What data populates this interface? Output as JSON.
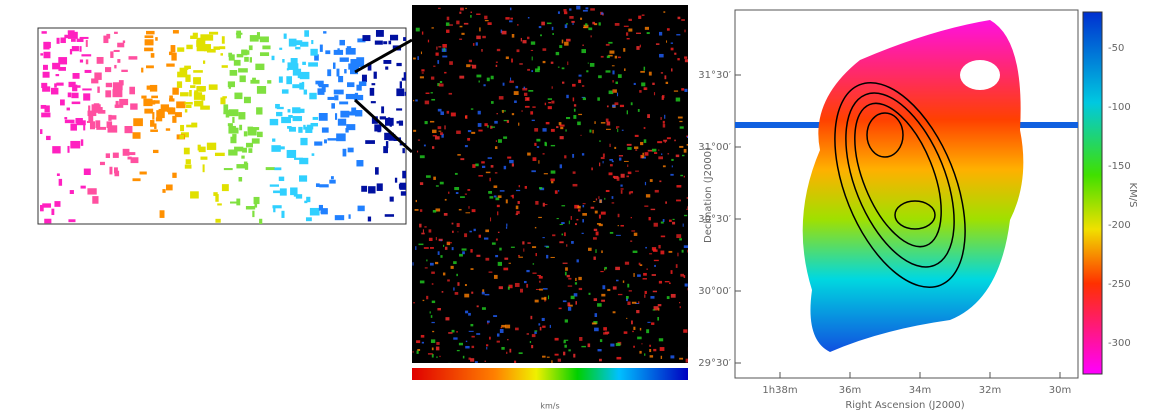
{
  "right_panel": {
    "x_label": "Right Ascension (J2000)",
    "y_label": "Declination (J2000)",
    "x_ticks": [
      "1h38m",
      "36m",
      "34m",
      "32m",
      "30m"
    ],
    "y_ticks": [
      "31°30′",
      "31°00′",
      "30°30′",
      "30°00′",
      "29°30′"
    ],
    "colorbar": {
      "label": "KM/S",
      "ticks": [
        "-50",
        "-100",
        "-150",
        "-200",
        "-250",
        "-300"
      ]
    }
  },
  "middle_panel": {
    "colorbar_label": "km/s"
  }
}
